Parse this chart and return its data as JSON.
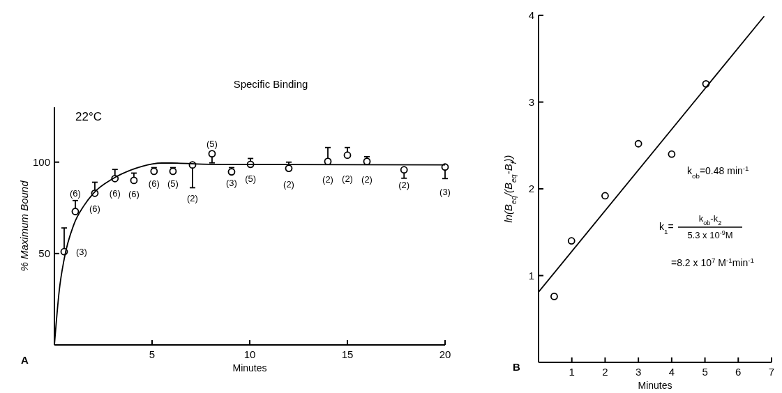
{
  "chart_data": [
    {
      "type": "scatter",
      "title": "Specific Binding",
      "xlabel": "Minutes",
      "ylabel": "% Maximum Bound",
      "xlim": [
        0,
        20
      ],
      "ylim": [
        0,
        130
      ],
      "xticks": [
        5,
        10,
        15,
        20
      ],
      "yticks": [
        50,
        100
      ],
      "annotations": [
        "22°C",
        "A",
        {
          "text": "(3)",
          "x": 0.5,
          "y": 51
        },
        {
          "text": "(6)",
          "x": 1.07,
          "y": 73
        },
        {
          "text": "(6)",
          "x": 2.07,
          "y": 83
        },
        {
          "text": "(6)",
          "x": 3.1,
          "y": 91
        },
        {
          "text": "(6)",
          "x": 4.07,
          "y": 90
        },
        {
          "text": "(6)",
          "x": 5.1,
          "y": 95
        },
        {
          "text": "(5)",
          "x": 6.07,
          "y": 95
        },
        {
          "text": "(2)",
          "x": 7.07,
          "y": 86
        },
        {
          "text": "(5)",
          "x": 8.07,
          "y": 104.6
        },
        {
          "text": "(3)",
          "x": 9.07,
          "y": 94.7
        },
        {
          "text": "(5)",
          "x": 10.04,
          "y": 98.8
        },
        {
          "text": "(2)",
          "x": 12,
          "y": 96.6
        },
        {
          "text": "(2)",
          "x": 14,
          "y": 100.4
        },
        {
          "text": "(2)",
          "x": 15,
          "y": 103.8
        },
        {
          "text": "(2)",
          "x": 16,
          "y": 100.4
        },
        {
          "text": "(2)",
          "x": 17.9,
          "y": 95.8
        },
        {
          "text": "(3)",
          "x": 20,
          "y": 97.3
        }
      ],
      "series": [
        {
          "color": "#000000",
          "marker": "circle",
          "x": [
            0.5,
            1.07,
            2.07,
            3.1,
            4.07,
            5.1,
            6.07,
            7.07,
            8.07,
            9.07,
            10.04,
            12,
            14,
            15,
            16,
            17.9,
            20
          ],
          "values": [
            51,
            73,
            83,
            91,
            90,
            95,
            95,
            98.5,
            104.6,
            94.7,
            98.8,
            96.6,
            100.4,
            103.8,
            100.4,
            95.8,
            97.3
          ],
          "errors": [
            [
              51,
              64
            ],
            [
              73,
              79
            ],
            [
              83,
              89
            ],
            [
              91,
              96
            ],
            [
              90,
              94
            ],
            [
              95,
              97
            ],
            [
              95,
              97
            ],
            [
              86,
              98.5
            ],
            [
              99.6,
              104.6
            ],
            [
              94.7,
              97
            ],
            [
              98.8,
              102
            ],
            [
              96.6,
              100
            ],
            [
              100.4,
              108
            ],
            [
              103.8,
              108
            ],
            [
              100.4,
              103
            ],
            [
              91.2,
              95.8
            ],
            [
              91,
              97.3
            ]
          ]
        },
        {
          "type": "line",
          "color": "#000000",
          "x": [
            0,
            0.25,
            0.5,
            1,
            1.5,
            2,
            3,
            4,
            5,
            5.5,
            6,
            8,
            20
          ],
          "values": [
            0,
            30,
            47,
            66,
            76,
            83,
            91,
            96,
            99,
            99.5,
            99.5,
            98.8,
            98.5
          ]
        }
      ]
    },
    {
      "type": "scatter",
      "xlabel": "Minutes",
      "ylabel": "ln(B$_{eq}$/(B$_{eq}$-B$_{f}$))",
      "xlim": [
        0,
        7
      ],
      "ylim": [
        0,
        4
      ],
      "xticks": [
        1,
        2,
        3,
        4,
        5,
        6,
        7
      ],
      "yticks": [
        1,
        2,
        3,
        4
      ],
      "annotations": [
        "k$_{ob}$=0.48 min$^{-1}$",
        "k$_{1}$=",
        "k$_{ob}$-k$_{2}$",
        "5.3 x 10$^{-9}$M",
        "=8.2 x 10$^{7}$ M$^{-1}$min$^{-1}$",
        "B"
      ],
      "series": [
        {
          "color": "#000000",
          "marker": "circle",
          "x": [
            0.47,
            0.99,
            2.0,
            3.0,
            4.0,
            5.03
          ],
          "values": [
            0.76,
            1.4,
            1.92,
            2.52,
            2.4,
            3.21
          ]
        },
        {
          "type": "line",
          "color": "#000000",
          "x": [
            0,
            6.78
          ],
          "values": [
            0.81,
            3.99
          ]
        }
      ]
    }
  ]
}
